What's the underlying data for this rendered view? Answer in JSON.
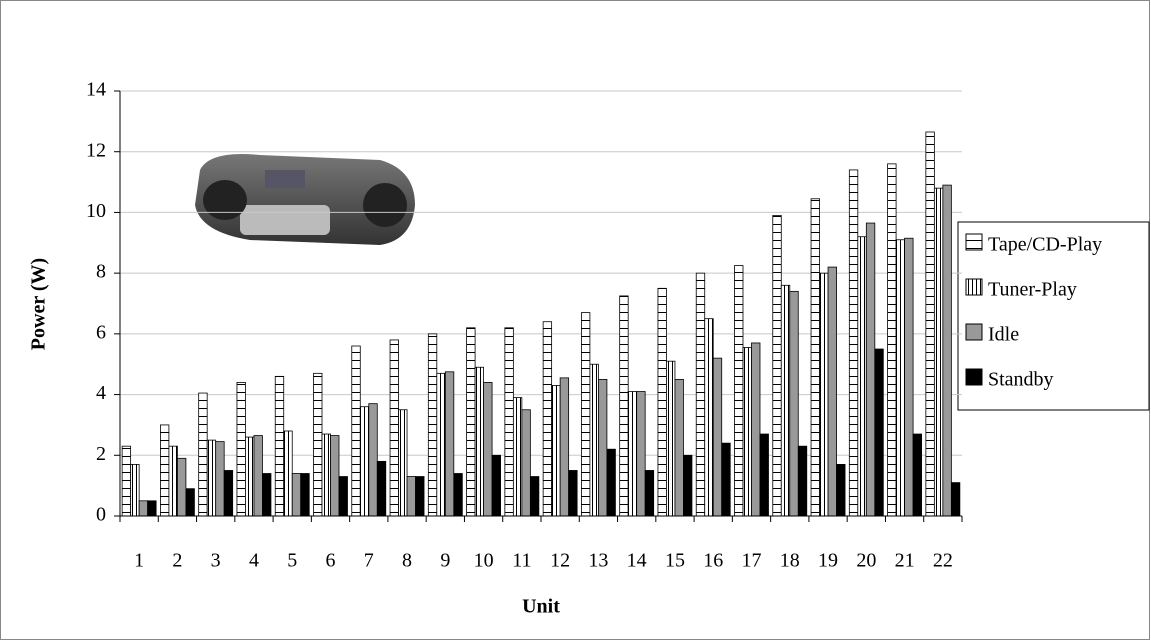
{
  "chart_data": {
    "type": "bar",
    "x_label": "Unit",
    "y_label": "Power (W)",
    "categories": [
      "1",
      "2",
      "3",
      "4",
      "5",
      "6",
      "7",
      "8",
      "9",
      "10",
      "11",
      "12",
      "13",
      "14",
      "15",
      "16",
      "17",
      "18",
      "19",
      "20",
      "21",
      "22"
    ],
    "series": [
      {
        "name": "Tape/CD-Play",
        "color": "#ffffff",
        "pattern": "horizontal",
        "values": [
          2.3,
          3.0,
          4.05,
          4.4,
          4.6,
          4.7,
          5.6,
          5.8,
          6.0,
          6.2,
          6.2,
          6.4,
          6.7,
          7.25,
          7.5,
          8.0,
          8.25,
          9.9,
          10.45,
          11.4,
          11.6,
          12.65
        ]
      },
      {
        "name": "Tuner-Play",
        "color": "#ffffff",
        "pattern": "vertical",
        "values": [
          1.7,
          2.3,
          2.5,
          2.6,
          2.8,
          2.7,
          3.6,
          3.5,
          4.7,
          4.9,
          3.9,
          4.3,
          5.0,
          4.1,
          5.1,
          6.5,
          5.55,
          7.6,
          8.0,
          9.2,
          9.1,
          10.8
        ]
      },
      {
        "name": "Idle",
        "color": "#999999",
        "values": [
          0.5,
          1.9,
          2.45,
          2.65,
          1.4,
          2.65,
          3.7,
          1.3,
          4.75,
          4.4,
          3.5,
          4.55,
          4.5,
          4.1,
          4.5,
          5.2,
          5.7,
          7.4,
          8.2,
          9.65,
          9.15,
          10.9
        ]
      },
      {
        "name": "Standby",
        "color": "#000000",
        "values": [
          0.5,
          0.9,
          1.5,
          1.4,
          1.4,
          1.3,
          1.8,
          1.3,
          1.4,
          2.0,
          1.3,
          1.5,
          2.2,
          1.5,
          2.0,
          2.4,
          2.7,
          2.3,
          1.7,
          5.5,
          2.7,
          1.1
        ]
      }
    ],
    "ylim": [
      0,
      14
    ],
    "yticks": [
      0,
      2,
      4,
      6,
      8,
      10,
      12,
      14
    ],
    "grid": true,
    "legend": "right"
  }
}
